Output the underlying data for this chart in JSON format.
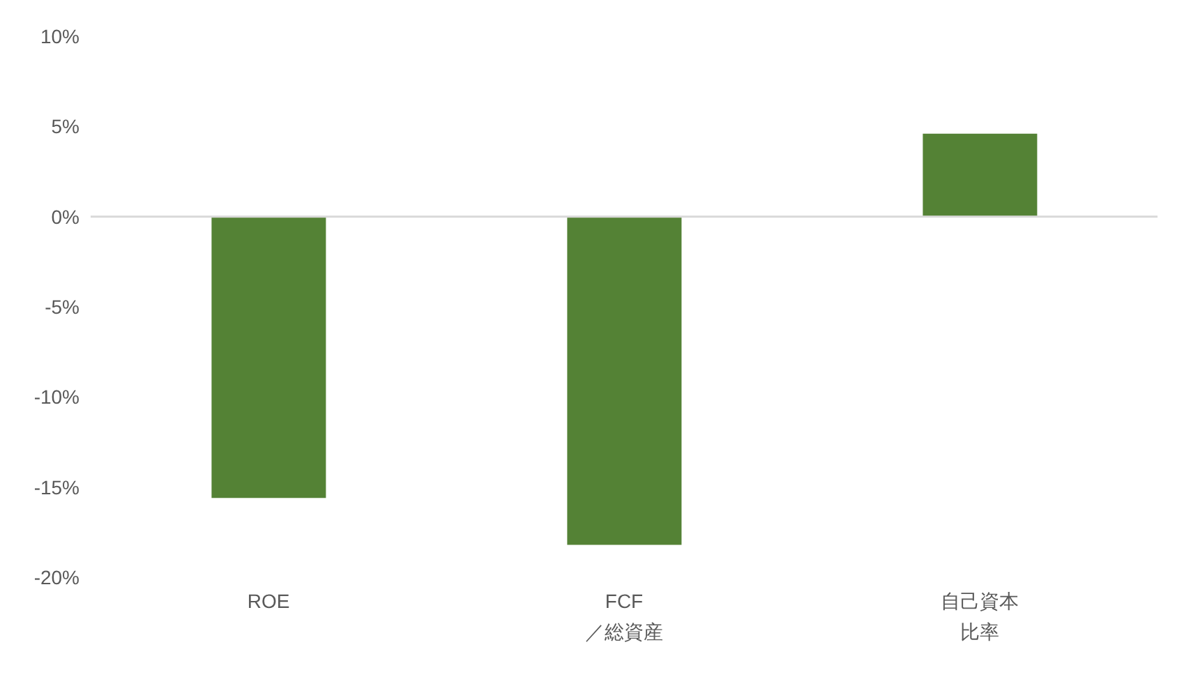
{
  "chart_data": {
    "type": "bar",
    "categories": [
      "ROE",
      "FCF\n／総資産",
      "自己資本比率"
    ],
    "values": [
      -15.6,
      -18.2,
      4.6
    ],
    "color": "#548235",
    "ylim": [
      -20,
      10
    ],
    "yticks": [
      {
        "value": -20,
        "label": "-20%"
      },
      {
        "value": -15,
        "label": "-15%"
      },
      {
        "value": -10,
        "label": "-10%"
      },
      {
        "value": -5,
        "label": "-5%"
      },
      {
        "value": 0,
        "label": "0%"
      },
      {
        "value": 5,
        "label": "5%"
      },
      {
        "value": 10,
        "label": "10%"
      }
    ],
    "ref_lines": [
      {
        "axis": "y",
        "value": 0,
        "color": "#d9d9d9"
      }
    ],
    "grid": false,
    "legend": false
  }
}
